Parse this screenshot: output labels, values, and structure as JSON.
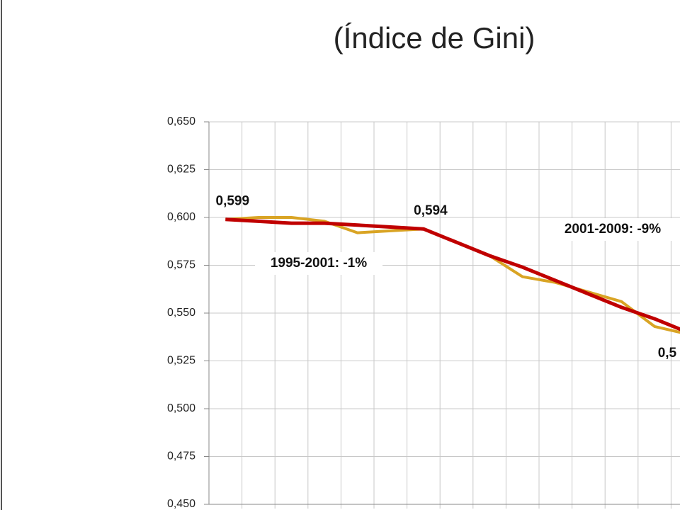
{
  "chart_data": {
    "type": "line",
    "title": "(Índice de Gini)",
    "categories": [
      null,
      null,
      null,
      null,
      null,
      null,
      null,
      null,
      null,
      null,
      null,
      null,
      null,
      null,
      null
    ],
    "series": [
      {
        "color": "#d9a424",
        "values": [
          0.599,
          0.6,
          0.6,
          0.598,
          0.592,
          0.593,
          0.594,
          0.587,
          0.58,
          0.569,
          0.566,
          0.561,
          0.556,
          0.543,
          0.539
        ]
      },
      {
        "color": "#c00000",
        "values": [
          0.599,
          0.598,
          0.597,
          0.597,
          0.596,
          0.595,
          0.594,
          0.587,
          0.58,
          0.574,
          0.567,
          0.56,
          0.553,
          0.547,
          0.54
        ],
        "value_labels": [
          "0,599",
          null,
          null,
          null,
          null,
          null,
          "0,594",
          null,
          null,
          null,
          null,
          null,
          null,
          null,
          "0,5"
        ]
      }
    ],
    "annotations": [
      "1995-2001: -1%",
      "2001-2009: -9%"
    ],
    "ylim": [
      0.45,
      0.65
    ],
    "yticks": [
      {
        "value": 0.45,
        "label": "0,450"
      },
      {
        "value": 0.475,
        "label": "0,475"
      },
      {
        "value": 0.5,
        "label": "0,500"
      },
      {
        "value": 0.525,
        "label": "0,525"
      },
      {
        "value": 0.55,
        "label": "0,550"
      },
      {
        "value": 0.575,
        "label": "0,575"
      },
      {
        "value": 0.6,
        "label": "0,600"
      },
      {
        "value": 0.625,
        "label": "0,625"
      },
      {
        "value": 0.65,
        "label": "0,650"
      }
    ],
    "grid": true
  }
}
